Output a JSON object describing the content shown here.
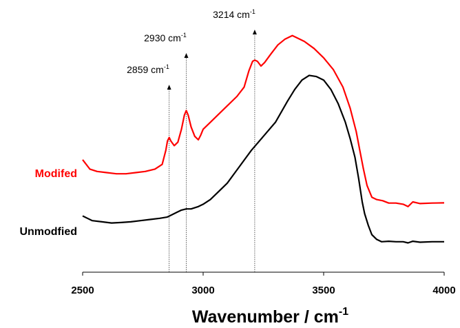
{
  "chart_data": {
    "type": "line",
    "title": "",
    "xlabel_main": "Wavenumber / cm",
    "xlabel_sup": "-1",
    "ylabel": "",
    "xlim": [
      2500,
      4000
    ],
    "x_ticks": [
      "2500",
      "3000",
      "3500",
      "4000"
    ],
    "grid": false,
    "series": [
      {
        "name": "Modifed",
        "color": "#ff0000",
        "x": [
          2500,
          2530,
          2560,
          2600,
          2640,
          2680,
          2720,
          2760,
          2800,
          2830,
          2845,
          2852,
          2859,
          2866,
          2880,
          2895,
          2910,
          2922,
          2930,
          2938,
          2950,
          2965,
          2980,
          2990,
          3000,
          3030,
          3060,
          3100,
          3140,
          3170,
          3190,
          3205,
          3214,
          3225,
          3240,
          3255,
          3280,
          3310,
          3340,
          3370,
          3390,
          3420,
          3460,
          3500,
          3540,
          3580,
          3610,
          3635,
          3650,
          3665,
          3680,
          3700,
          3720,
          3745,
          3770,
          3800,
          3830,
          3850,
          3870,
          3900,
          3950,
          4000
        ],
        "y": [
          0.48,
          0.44,
          0.43,
          0.425,
          0.42,
          0.42,
          0.425,
          0.43,
          0.44,
          0.46,
          0.52,
          0.56,
          0.575,
          0.56,
          0.54,
          0.555,
          0.61,
          0.67,
          0.69,
          0.67,
          0.62,
          0.58,
          0.565,
          0.585,
          0.61,
          0.64,
          0.67,
          0.71,
          0.75,
          0.79,
          0.86,
          0.9,
          0.905,
          0.9,
          0.88,
          0.895,
          0.93,
          0.97,
          0.995,
          1.01,
          1.0,
          0.985,
          0.955,
          0.915,
          0.865,
          0.79,
          0.7,
          0.6,
          0.52,
          0.44,
          0.37,
          0.32,
          0.31,
          0.305,
          0.295,
          0.295,
          0.29,
          0.28,
          0.3,
          0.293,
          0.295,
          0.296
        ]
      },
      {
        "name": "Unmodfied",
        "color": "#000000",
        "x": [
          2500,
          2540,
          2580,
          2620,
          2660,
          2700,
          2740,
          2780,
          2820,
          2850,
          2870,
          2890,
          2910,
          2930,
          2950,
          2980,
          3000,
          3030,
          3060,
          3100,
          3150,
          3200,
          3250,
          3300,
          3350,
          3380,
          3410,
          3440,
          3470,
          3500,
          3530,
          3560,
          3590,
          3610,
          3630,
          3645,
          3660,
          3670,
          3685,
          3700,
          3720,
          3740,
          3770,
          3800,
          3830,
          3850,
          3870,
          3900,
          3950,
          4000
        ],
        "y": [
          0.24,
          0.22,
          0.215,
          0.21,
          0.212,
          0.215,
          0.22,
          0.225,
          0.23,
          0.235,
          0.245,
          0.255,
          0.265,
          0.27,
          0.27,
          0.28,
          0.29,
          0.31,
          0.34,
          0.38,
          0.45,
          0.52,
          0.58,
          0.64,
          0.73,
          0.78,
          0.82,
          0.84,
          0.835,
          0.82,
          0.78,
          0.72,
          0.64,
          0.57,
          0.49,
          0.4,
          0.3,
          0.25,
          0.2,
          0.16,
          0.14,
          0.13,
          0.132,
          0.13,
          0.13,
          0.125,
          0.132,
          0.128,
          0.13,
          0.13
        ]
      }
    ],
    "annotations": [
      {
        "x": 2859,
        "label": "2859 cm",
        "sup": "-1"
      },
      {
        "x": 2930,
        "label": "2930 cm",
        "sup": "-1"
      },
      {
        "x": 3214,
        "label": "3214 cm",
        "sup": "-1"
      }
    ]
  }
}
